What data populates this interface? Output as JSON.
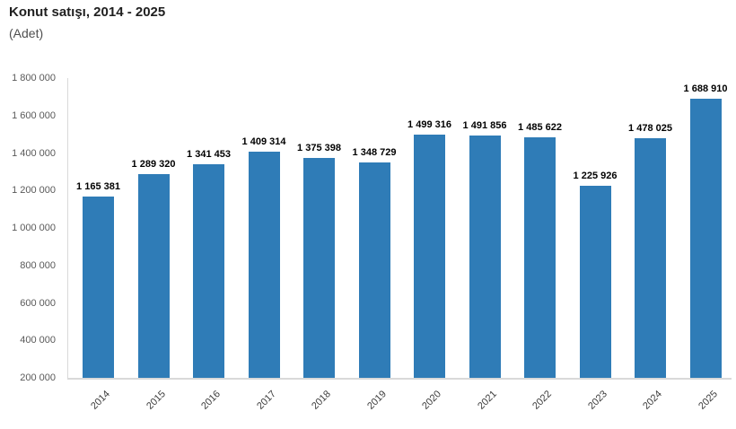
{
  "header": {
    "title": "Konut satışı, 2014 - 2025",
    "subtitle": "(Adet)"
  },
  "colors": {
    "bar": "#2f7cb7",
    "axis_line": "#d9d9d9",
    "title_text": "#1f1f1f",
    "subtitle_text": "#4f4f4f",
    "tick_text": "#595959",
    "category_text": "#3c3c3c",
    "data_label_text": "#000000",
    "background": "#ffffff"
  },
  "chart_data": {
    "type": "bar",
    "title": "Konut satışı, 2014 - 2025",
    "subtitle": "(Adet)",
    "xlabel": "",
    "ylabel": "",
    "categories": [
      "2014",
      "2015",
      "2016",
      "2017",
      "2018",
      "2019",
      "2020",
      "2021",
      "2022",
      "2023",
      "2024",
      "2025"
    ],
    "values": [
      1165381,
      1289320,
      1341453,
      1409314,
      1375398,
      1348729,
      1499316,
      1491856,
      1485622,
      1225926,
      1478025,
      1688910
    ],
    "data_labels": [
      "1 165 381",
      "1 289 320",
      "1 341 453",
      "1 409 314",
      "1 375 398",
      "1 348 729",
      "1 499 316",
      "1 491 856",
      "1 485 622",
      "1 225 926",
      "1 478 025",
      "1 688 910"
    ],
    "ytick_labels": [
      "1 800 000",
      "1 600 000",
      "1 400 000",
      "1 200 000",
      "1 000 000",
      "800 000",
      "600 000",
      "400 000",
      "200 000"
    ],
    "ylim": [
      200000,
      1800000
    ],
    "ytick_step": 200000,
    "grid": false,
    "legend": "none",
    "bar_color": "#2f7cb7",
    "data_labels_visible": true,
    "x_label_rotation": -45
  }
}
